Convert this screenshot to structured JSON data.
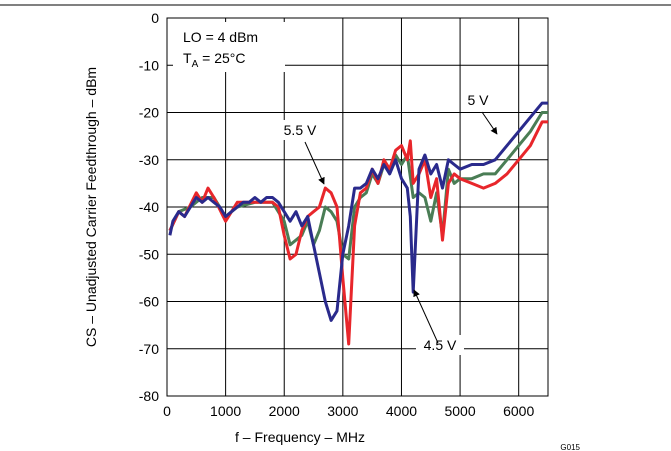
{
  "chart_data": {
    "type": "line",
    "xlabel": "f – Frequency – MHz",
    "ylabel": "CS – Unadjusted Carrier Feedthrough – dBm",
    "xlim": [
      0,
      6500
    ],
    "xticks": [
      0,
      1000,
      2000,
      3000,
      4000,
      5000,
      6000
    ],
    "ylim": [
      -80,
      0
    ],
    "yticks": [
      -80,
      -70,
      -60,
      -50,
      -40,
      -30,
      -20,
      -10,
      0
    ],
    "grid": true,
    "conditions": {
      "lo": "LO = 4 dBm",
      "ta": [
        "T",
        "A",
        " = 25°C"
      ]
    },
    "figure_id": "G015",
    "series": [
      {
        "name": "4.5 V",
        "color": "#2a2a8c",
        "x": [
          50,
          100,
          200,
          300,
          400,
          500,
          600,
          700,
          800,
          900,
          1000,
          1100,
          1200,
          1300,
          1400,
          1500,
          1600,
          1700,
          1800,
          1900,
          2000,
          2100,
          2200,
          2300,
          2400,
          2500,
          2600,
          2700,
          2800,
          2900,
          3000,
          3100,
          3200,
          3300,
          3400,
          3500,
          3600,
          3700,
          3800,
          3900,
          4000,
          4100,
          4150,
          4200,
          4250,
          4300,
          4400,
          4500,
          4600,
          4700,
          4800,
          4900,
          5000,
          5200,
          5400,
          5600,
          5800,
          6000,
          6200,
          6400,
          6500
        ],
        "values": [
          -46,
          -43,
          -41,
          -42,
          -40,
          -38,
          -39,
          -38,
          -39,
          -40,
          -42,
          -41,
          -40,
          -39,
          -39,
          -38,
          -39,
          -38,
          -38,
          -39,
          -41,
          -43,
          -41,
          -44,
          -42,
          -48,
          -54,
          -60,
          -64,
          -62,
          -50,
          -44,
          -36,
          -36,
          -35,
          -32,
          -34,
          -31,
          -33,
          -30,
          -34,
          -36,
          -42,
          -58,
          -45,
          -32,
          -29,
          -33,
          -31,
          -36,
          -30,
          -31,
          -32,
          -31,
          -31,
          -30,
          -27,
          -24,
          -21,
          -18,
          -18
        ]
      },
      {
        "name": "5.5 V",
        "color": "#e8262b",
        "x": [
          50,
          200,
          300,
          500,
          600,
          700,
          800,
          1000,
          1200,
          1500,
          1800,
          1900,
          2000,
          2100,
          2200,
          2300,
          2400,
          2500,
          2600,
          2700,
          2800,
          2900,
          3000,
          3100,
          3200,
          3300,
          3400,
          3500,
          3600,
          3700,
          3800,
          3900,
          4000,
          4100,
          4150,
          4200,
          4300,
          4400,
          4500,
          4600,
          4700,
          4800,
          4900,
          5000,
          5200,
          5400,
          5600,
          5800,
          6000,
          6200,
          6400,
          6500
        ],
        "values": [
          -45,
          -41,
          -42,
          -37,
          -39,
          -36,
          -38,
          -43,
          -39,
          -39,
          -39,
          -40,
          -46,
          -51,
          -50,
          -45,
          -42,
          -41,
          -40,
          -36,
          -37,
          -40,
          -55,
          -69,
          -44,
          -37,
          -36,
          -32,
          -35,
          -30,
          -32,
          -28,
          -27,
          -30,
          -26,
          -35,
          -33,
          -30,
          -38,
          -34,
          -47,
          -35,
          -33,
          -34,
          -35,
          -36,
          -35,
          -33,
          -30,
          -27,
          -22,
          -22
        ]
      },
      {
        "name": "5 V",
        "color": "#4a7d55",
        "x": [
          50,
          200,
          400,
          600,
          800,
          1000,
          1200,
          1500,
          1800,
          2000,
          2100,
          2200,
          2300,
          2400,
          2500,
          2600,
          2700,
          2800,
          2900,
          3000,
          3100,
          3200,
          3300,
          3400,
          3500,
          3600,
          3700,
          3800,
          3900,
          4000,
          4100,
          4200,
          4300,
          4400,
          4500,
          4600,
          4700,
          4800,
          4900,
          5000,
          5200,
          5400,
          5600,
          5800,
          6000,
          6200,
          6400,
          6500
        ],
        "values": [
          -45,
          -41,
          -40,
          -38,
          -38,
          -42,
          -40,
          -39,
          -39,
          -43,
          -48,
          -47,
          -46,
          -43,
          -48,
          -45,
          -40,
          -41,
          -43,
          -50,
          -51,
          -40,
          -38,
          -37,
          -33,
          -35,
          -31,
          -32,
          -29,
          -31,
          -29,
          -38,
          -37,
          -38,
          -43,
          -37,
          -46,
          -32,
          -35,
          -34,
          -34,
          -33,
          -33,
          -30,
          -27,
          -24,
          -20,
          -20
        ]
      }
    ]
  }
}
